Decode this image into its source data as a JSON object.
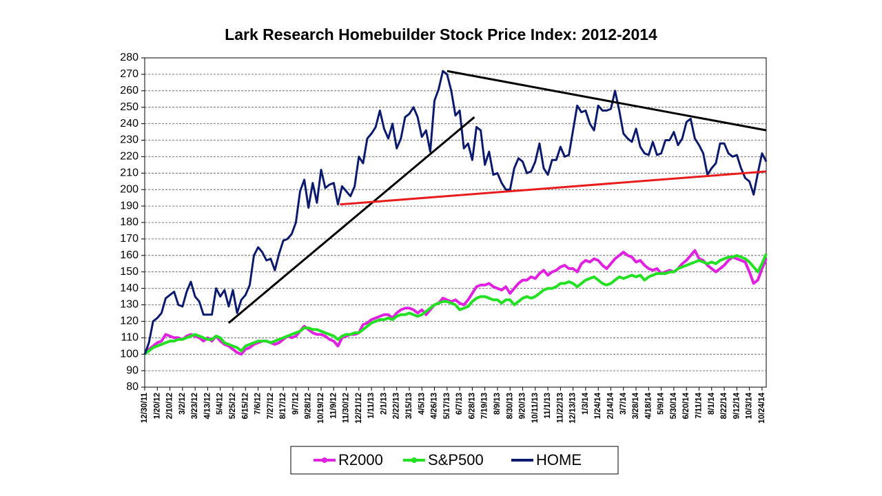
{
  "chart_data": {
    "type": "line",
    "title": "Lark Research Homebuilder Stock Price Index: 2012-2014",
    "categories": [
      "12/30/11",
      null,
      null,
      "1/20/12",
      null,
      null,
      "2/10/12",
      null,
      null,
      "3/2/12",
      null,
      null,
      "3/23/12",
      null,
      null,
      "4/13/12",
      null,
      null,
      "5/4/12",
      null,
      null,
      "5/25/12",
      null,
      null,
      "6/15/12",
      null,
      null,
      "7/6/12",
      null,
      null,
      "7/27/12",
      null,
      null,
      "8/17/12",
      null,
      null,
      "9/7/12",
      null,
      null,
      "9/28/12",
      null,
      null,
      "10/19/12",
      null,
      null,
      "11/9/12",
      null,
      null,
      "11/30/12",
      null,
      null,
      "12/21/12",
      null,
      null,
      "1/11/13",
      null,
      null,
      "2/1/13",
      null,
      null,
      "2/22/13",
      null,
      null,
      "3/15/13",
      null,
      null,
      "4/5/13",
      null,
      null,
      "4/26/13",
      null,
      null,
      "5/17/13",
      null,
      null,
      "6/7/13",
      null,
      null,
      "6/28/13",
      null,
      null,
      "7/19/13",
      null,
      null,
      "8/9/13",
      null,
      null,
      "8/30/13",
      null,
      null,
      "9/20/13",
      null,
      null,
      "10/11/13",
      null,
      null,
      "11/1/13",
      null,
      null,
      "11/22/13",
      null,
      null,
      "12/13/13",
      null,
      null,
      "1/3/14",
      null,
      null,
      "1/24/14",
      null,
      null,
      "2/14/14",
      null,
      null,
      "3/7/14",
      null,
      null,
      "3/28/14",
      null,
      null,
      "4/18/14",
      null,
      null,
      "5/9/14",
      null,
      null,
      "5/30/14",
      null,
      null,
      "6/20/14",
      null,
      null,
      "7/11/14",
      null,
      null,
      "8/1/14",
      null,
      null,
      "8/22/14",
      null,
      null,
      "9/12/14",
      null,
      null,
      "10/3/14",
      null,
      null,
      "10/24/14",
      null
    ],
    "series": [
      {
        "name": "R2000",
        "color": "#e022e0",
        "values": [
          100,
          103,
          105,
          107,
          108,
          112,
          111,
          110,
          110,
          109,
          111,
          112,
          111,
          110,
          108,
          110,
          108,
          111,
          108,
          106,
          105,
          103,
          101,
          100,
          103,
          104,
          106,
          107,
          108,
          108,
          107,
          106,
          107,
          109,
          111,
          110,
          111,
          114,
          117,
          115,
          113,
          112,
          112,
          111,
          109,
          108,
          105,
          110,
          111,
          112,
          112,
          113,
          118,
          119,
          121,
          122,
          123,
          124,
          124,
          122,
          125,
          127,
          128,
          128,
          127,
          125,
          127,
          124,
          127,
          130,
          131,
          134,
          133,
          132,
          133,
          131,
          130,
          133,
          137,
          141,
          142,
          142,
          143,
          141,
          140,
          139,
          141,
          137,
          140,
          143,
          145,
          145,
          147,
          146,
          149,
          151,
          148,
          150,
          151,
          153,
          154,
          152,
          152,
          150,
          155,
          157,
          156,
          158,
          157,
          154,
          152,
          155,
          158,
          160,
          162,
          160,
          159,
          156,
          157,
          154,
          152,
          151,
          152,
          149,
          150,
          151,
          150,
          152,
          155,
          157,
          160,
          163,
          158,
          157,
          154,
          152,
          150,
          152,
          154,
          157,
          159,
          158,
          157,
          156,
          150,
          143,
          145,
          152,
          158
        ]
      },
      {
        "name": "S&P500",
        "color": "#22e022",
        "values": [
          100,
          102,
          104,
          105,
          106,
          107,
          108,
          108,
          109,
          109,
          110,
          111,
          112,
          111,
          110,
          109,
          109,
          111,
          110,
          107,
          106,
          105,
          104,
          102,
          105,
          106,
          107,
          108,
          108,
          108,
          107,
          108,
          109,
          110,
          111,
          112,
          113,
          114,
          116,
          116,
          115,
          115,
          114,
          113,
          112,
          111,
          109,
          111,
          112,
          112,
          113,
          113,
          115,
          117,
          119,
          120,
          121,
          121,
          122,
          121,
          123,
          124,
          124,
          125,
          124,
          123,
          124,
          126,
          128,
          130,
          131,
          132,
          132,
          131,
          130,
          127,
          128,
          129,
          132,
          134,
          135,
          135,
          134,
          133,
          133,
          131,
          133,
          133,
          130,
          132,
          134,
          135,
          134,
          135,
          137,
          139,
          140,
          140,
          141,
          143,
          143,
          144,
          143,
          141,
          143,
          145,
          146,
          147,
          145,
          143,
          142,
          143,
          145,
          147,
          146,
          147,
          148,
          147,
          148,
          145,
          147,
          148,
          149,
          149,
          149,
          150,
          150,
          152,
          153,
          154,
          155,
          156,
          157,
          156,
          155,
          156,
          155,
          157,
          158,
          159,
          159,
          160,
          159,
          158,
          156,
          153,
          150,
          155,
          161
        ]
      },
      {
        "name": "HOME",
        "color": "#0c1a6e",
        "values": [
          100,
          107,
          120,
          122,
          125,
          134,
          136,
          138,
          130,
          129,
          138,
          144,
          135,
          132,
          124,
          124,
          124,
          140,
          135,
          139,
          129,
          139,
          125,
          133,
          136,
          142,
          160,
          165,
          162,
          157,
          158,
          151,
          161,
          169,
          170,
          173,
          180,
          199,
          206,
          189,
          204,
          192,
          212,
          201,
          203,
          204,
          191,
          202,
          199,
          196,
          202,
          220,
          216,
          231,
          234,
          238,
          248,
          237,
          231,
          240,
          225,
          231,
          244,
          246,
          250,
          244,
          232,
          236,
          223,
          254,
          261,
          272,
          270,
          260,
          245,
          248,
          225,
          228,
          218,
          238,
          236,
          215,
          223,
          209,
          210,
          204,
          200,
          200,
          213,
          219,
          217,
          210,
          211,
          217,
          228,
          213,
          209,
          218,
          218,
          226,
          220,
          221,
          236,
          251,
          247,
          248,
          240,
          236,
          251,
          248,
          248,
          249,
          260,
          248,
          234,
          231,
          229,
          237,
          226,
          222,
          221,
          229,
          221,
          222,
          230,
          230,
          235,
          227,
          231,
          241,
          243,
          231,
          227,
          222,
          209,
          213,
          216,
          228,
          228,
          222,
          220,
          221,
          213,
          207,
          205,
          197,
          210,
          222,
          217
        ]
      }
    ],
    "trend_lines": [
      {
        "color": "#000000",
        "from": 20,
        "to": 78.5,
        "values": [
          119,
          244
        ]
      },
      {
        "color": "#e81c1c",
        "from": 46.5,
        "to": 148,
        "values": [
          191,
          211
        ]
      },
      {
        "color": "#000000",
        "from": 72,
        "to": 148,
        "values": [
          272,
          236
        ]
      }
    ],
    "ylim": [
      80,
      280
    ],
    "yticks": [
      80,
      90,
      100,
      110,
      120,
      130,
      140,
      150,
      160,
      170,
      180,
      190,
      200,
      210,
      220,
      230,
      240,
      250,
      260,
      270,
      280
    ],
    "grid": true,
    "legend": "bottom"
  }
}
